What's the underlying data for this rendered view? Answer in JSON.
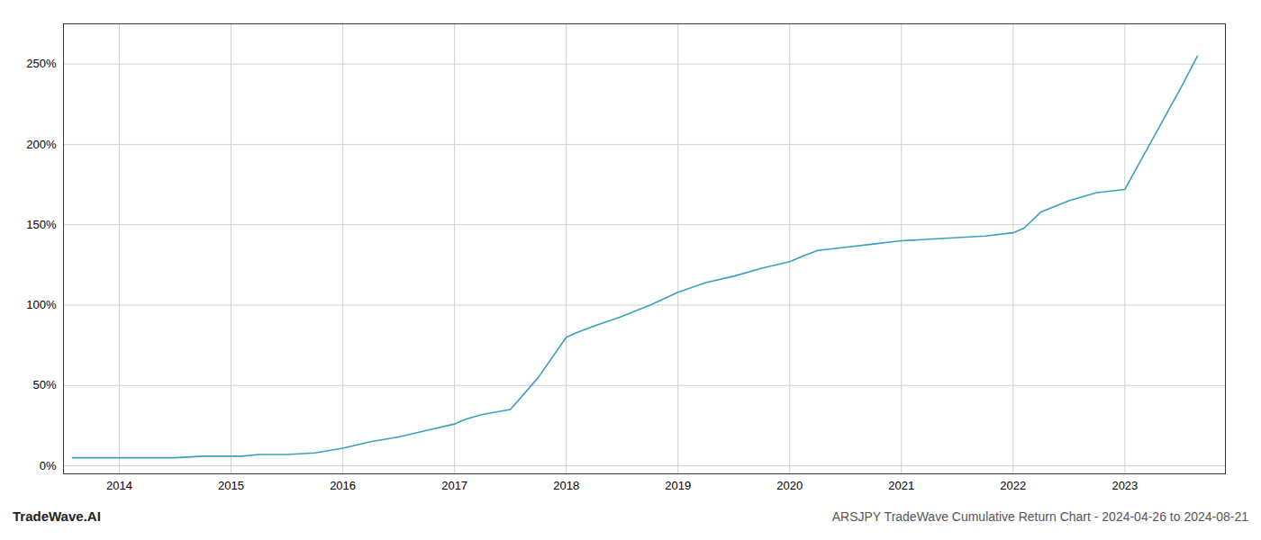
{
  "chart_data": {
    "type": "line",
    "title": "ARSJPY TradeWave Cumulative Return Chart - 2024-04-26 to 2024-08-21",
    "annotations": [
      "TradeWave.AI"
    ],
    "x": [
      2013.58,
      2014.0,
      2014.25,
      2014.5,
      2014.75,
      2015.0,
      2015.1,
      2015.25,
      2015.5,
      2015.75,
      2016.0,
      2016.25,
      2016.5,
      2016.75,
      2017.0,
      2017.1,
      2017.25,
      2017.5,
      2017.75,
      2018.0,
      2018.1,
      2018.25,
      2018.5,
      2018.75,
      2019.0,
      2019.25,
      2019.5,
      2019.75,
      2020.0,
      2020.1,
      2020.25,
      2020.5,
      2020.75,
      2021.0,
      2021.25,
      2021.5,
      2021.75,
      2022.0,
      2022.1,
      2022.25,
      2022.5,
      2022.75,
      2023.0,
      2023.5,
      2023.65
    ],
    "values": [
      5,
      5,
      5,
      5,
      6,
      6,
      6,
      7,
      7,
      8,
      11,
      15,
      18,
      22,
      26,
      29,
      32,
      35,
      55,
      80,
      83,
      87,
      93,
      100,
      108,
      114,
      118,
      123,
      127,
      130,
      134,
      136,
      138,
      140,
      141,
      142,
      143,
      145,
      148,
      158,
      165,
      170,
      172,
      235,
      255
    ],
    "color": "#3a9fc0",
    "xlim": [
      2013.5,
      2023.9
    ],
    "xticks": [
      2014,
      2015,
      2016,
      2017,
      2018,
      2019,
      2020,
      2021,
      2022,
      2023
    ],
    "ylim": [
      -5,
      275
    ],
    "yticks": [
      {
        "value": 0,
        "label": "0%"
      },
      {
        "value": 50,
        "label": "50%"
      },
      {
        "value": 100,
        "label": "100%"
      },
      {
        "value": 150,
        "label": "150%"
      },
      {
        "value": 200,
        "label": "200%"
      },
      {
        "value": 250,
        "label": "250%"
      }
    ],
    "grid": true
  }
}
